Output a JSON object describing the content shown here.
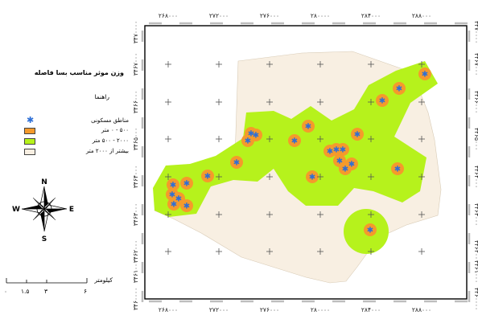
{
  "map": {
    "x_ticks": [
      "۲۶۸۰۰۰",
      "۲۷۲۰۰۰",
      "۲۷۶۰۰۰",
      "۲۸۰۰۰۰",
      "۲۸۴۰۰۰",
      "۲۸۸۰۰۰"
    ],
    "y_ticks": [
      "۳۴۷۰۰۰۰",
      "۳۴۶۷۰۰۰",
      "۳۴۶۶۰۰۰",
      "۳۴۶۵۰۰۰",
      "۳۴۶۴۰۰۰",
      "۳۴۶۳۰۰۰",
      "۳۴۶۲۰۰۰",
      "۳۴۶۱۰۰۰",
      "۳۴۶۰۰۰۰"
    ],
    "colors": {
      "study_area": "#f8efe2",
      "buffer_2000": "#b6f21c",
      "buffer_500": "#f59a2b",
      "site_point": "#2e6fd6",
      "frame": "#000000",
      "grid_cross": "#555555"
    }
  },
  "legend": {
    "title": "وزن موثر مناسب بسا فاصله",
    "heading": "راهنما",
    "items": [
      {
        "label": "مناطق مسکونی",
        "symbol": "star-icon"
      },
      {
        "label": "۵۰۰ - ۰ متر",
        "symbol": "orange-swatch"
      },
      {
        "label": "۲۰۰۰ - ۵۰۰ متر",
        "symbol": "green-swatch"
      },
      {
        "label": "بیشتر از ۲۰۰۰ متر",
        "symbol": "beige-swatch"
      }
    ]
  },
  "north_arrow": {
    "n": "N",
    "s": "S",
    "e": "E",
    "w": "W"
  },
  "scale_bar": {
    "title": "کیلومتر",
    "labels": [
      "۰",
      "۱.۵",
      "۳",
      "۶"
    ]
  }
}
